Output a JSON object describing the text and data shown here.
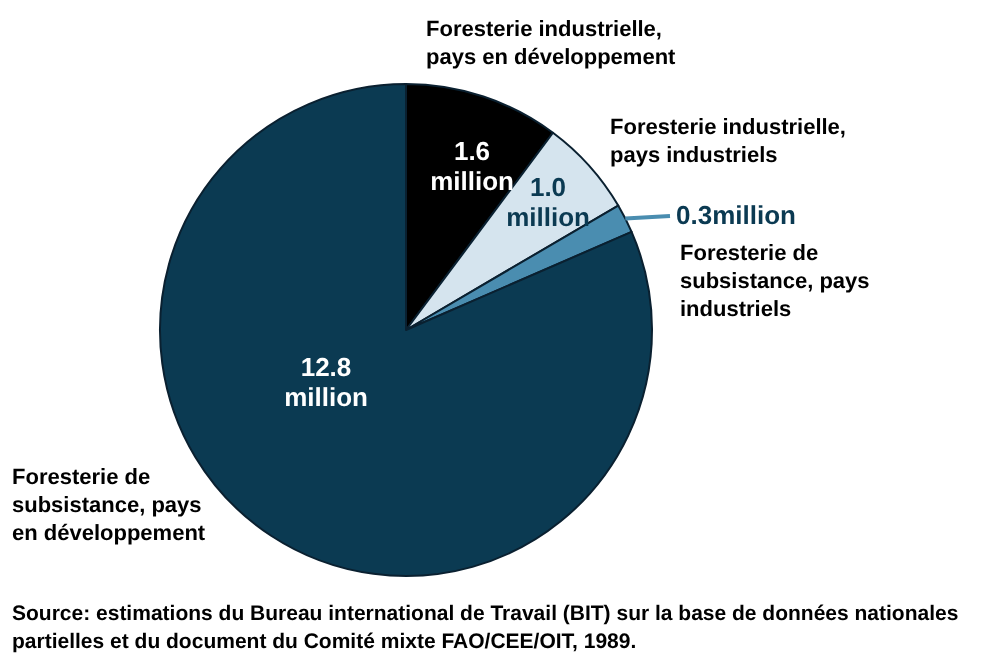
{
  "chart_data": {
    "type": "pie",
    "categories": [
      "Foresterie industrielle, pays en développement",
      "Foresterie industrielle, pays industriels",
      "Foresterie de subsistance, pays industriels",
      "Foresterie de subsistance, pays en développement"
    ],
    "values": [
      1.6,
      1.0,
      0.3,
      12.8
    ],
    "value_labels": [
      "1.6 million",
      "1.0 million",
      "0.3million",
      "12.8 million"
    ],
    "colors": [
      "#000000",
      "#d5e4ee",
      "#4a8db0",
      "#0b3a52"
    ],
    "legend": false,
    "annotations": [
      "Source: estimations du Bureau international de Travail (BIT) sur la base de données nationales partielles et du document du Comité mixte FAO/CEE/OIT, 1989."
    ]
  }
}
